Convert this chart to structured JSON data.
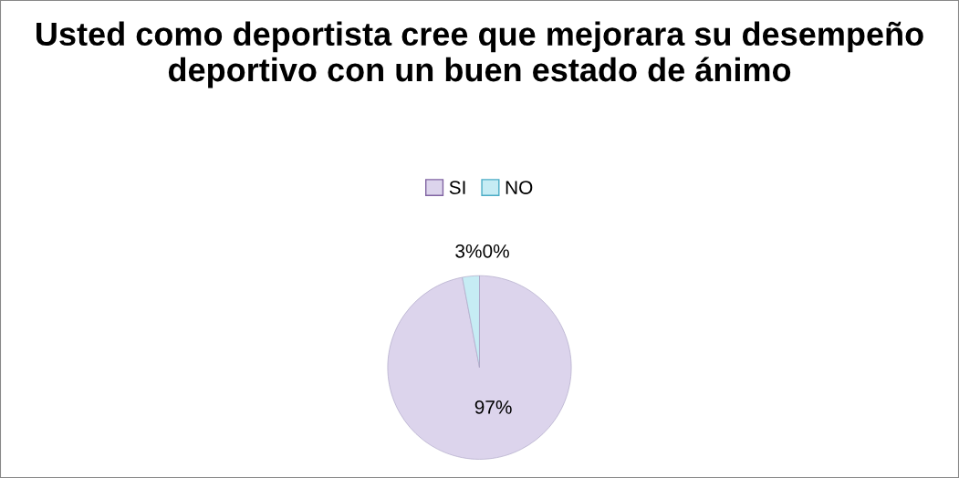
{
  "chart_data": {
    "type": "pie",
    "title": "Usted como deportista cree que mejorara su desempeño deportivo con un buen estado de ánimo",
    "categories": [
      "SI",
      "NO",
      null
    ],
    "values": [
      97,
      3,
      0
    ],
    "colors": [
      "#dcd4ec",
      "#c6ecf4",
      "#9bbb59"
    ],
    "value_labels": [
      "97%",
      "3%",
      "0%"
    ],
    "legend": "top"
  }
}
